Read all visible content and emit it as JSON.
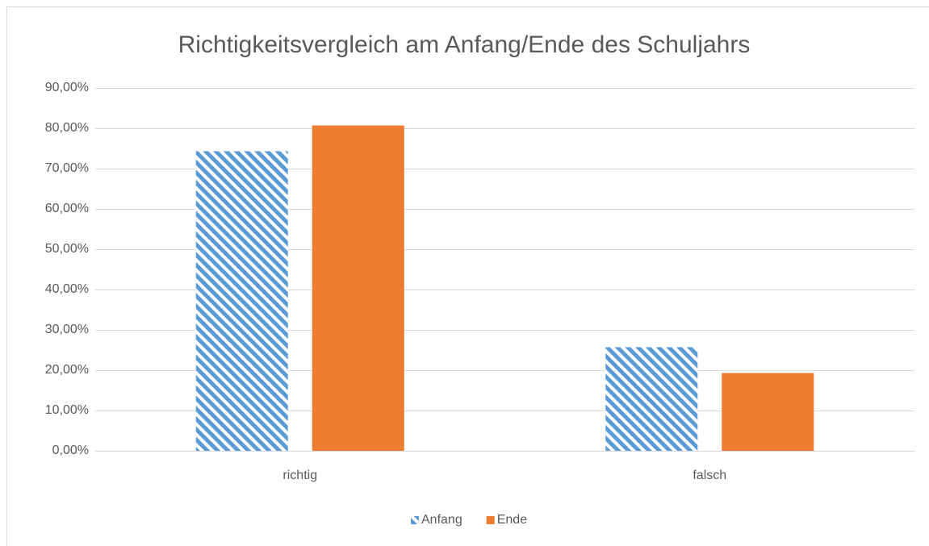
{
  "chart_data": {
    "type": "bar",
    "title": "Richtigkeitsvergleich am Anfang/Ende des Schuljahrs",
    "categories": [
      "richtig",
      "falsch"
    ],
    "series": [
      {
        "name": "Anfang",
        "color": "#5b9bd5",
        "pattern": "diagonal-hatch",
        "values": [
          74.3,
          25.7
        ]
      },
      {
        "name": "Ende",
        "color": "#ed7d31",
        "values": [
          80.7,
          19.3
        ]
      }
    ],
    "ylim": [
      0,
      90
    ],
    "yticks": [
      {
        "value": 0,
        "label": "0,00%"
      },
      {
        "value": 10,
        "label": "10,00%"
      },
      {
        "value": 20,
        "label": "20,00%"
      },
      {
        "value": 30,
        "label": "30,00%"
      },
      {
        "value": 40,
        "label": "40,00%"
      },
      {
        "value": 50,
        "label": "50,00%"
      },
      {
        "value": 60,
        "label": "60,00%"
      },
      {
        "value": 70,
        "label": "70,00%"
      },
      {
        "value": 80,
        "label": "80,00%"
      },
      {
        "value": 90,
        "label": "90,00%"
      }
    ],
    "grid": true,
    "legend": "bottom"
  }
}
